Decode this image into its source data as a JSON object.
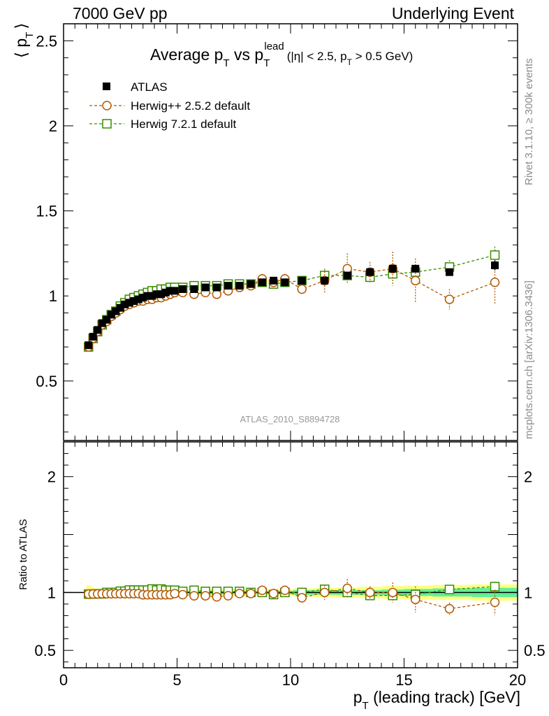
{
  "header": {
    "left": "7000 GeV pp",
    "right": "Underlying Event"
  },
  "side_labels": {
    "rivet": "Rivet 3.1.10, ≥ 300k events",
    "mcplots": "mcplots.cern.ch [arXiv:1306.3436]"
  },
  "chart_data": {
    "type": "scatter",
    "title_parts": {
      "lead": "Average p",
      "sub_t": "T",
      "mid": " vs p",
      "sub_t2": "T",
      "sup": "lead",
      "cut1": "(|η| < 2.5, p",
      "cut_sub": "T",
      "cut2": " > 0.5 GeV)"
    },
    "analysis_label": "ATLAS_2010_S8894728",
    "ylabel_main": "⟨ p",
    "ylabel_main_sub": "T",
    "ylabel_main_close": "⟩",
    "ylabel_ratio": "Ratio to ATLAS",
    "xlabel": "p",
    "xlabel_sub": "T",
    "xlabel_rest": " (leading track) [GeV]",
    "xlim": [
      0,
      20
    ],
    "ylim_main": [
      0.15,
      2.6
    ],
    "ylim_ratio": [
      0.35,
      2.3
    ],
    "xticks": [
      "0",
      "5",
      "10",
      "15",
      "20"
    ],
    "yticks_main": [
      "0.5",
      "1",
      "1.5",
      "2",
      "2.5"
    ],
    "yticks_ratio": [
      "0.5",
      "1",
      "2"
    ],
    "legend_position": "top-left",
    "colors": {
      "atlas": "#000000",
      "herwigpp": "#b35900",
      "herwig7": "#3a8c00",
      "band_outer": "#ffff80",
      "band_inner": "#66ee99"
    },
    "x": [
      1.1,
      1.3,
      1.5,
      1.7,
      1.9,
      2.1,
      2.3,
      2.5,
      2.7,
      2.9,
      3.1,
      3.3,
      3.5,
      3.7,
      3.9,
      4.1,
      4.3,
      4.5,
      4.7,
      4.9,
      5.25,
      5.75,
      6.25,
      6.75,
      7.25,
      7.75,
      8.25,
      8.75,
      9.25,
      9.75,
      10.5,
      11.5,
      12.5,
      13.5,
      14.5,
      15.5,
      17.0,
      19.0
    ],
    "series": [
      {
        "name": "ATLAS",
        "marker": "filled-square",
        "values": [
          0.71,
          0.76,
          0.8,
          0.84,
          0.86,
          0.89,
          0.91,
          0.93,
          0.95,
          0.96,
          0.97,
          0.98,
          0.99,
          1.0,
          1.0,
          1.01,
          1.01,
          1.02,
          1.03,
          1.03,
          1.04,
          1.04,
          1.05,
          1.05,
          1.06,
          1.06,
          1.07,
          1.08,
          1.09,
          1.08,
          1.09,
          1.09,
          1.12,
          1.14,
          1.16,
          1.16,
          1.14,
          1.18
        ],
        "errors": [
          0.01,
          0.01,
          0.01,
          0.01,
          0.01,
          0.01,
          0.01,
          0.01,
          0.01,
          0.01,
          0.01,
          0.01,
          0.01,
          0.01,
          0.01,
          0.01,
          0.01,
          0.01,
          0.01,
          0.01,
          0.01,
          0.01,
          0.01,
          0.01,
          0.01,
          0.01,
          0.01,
          0.01,
          0.01,
          0.01,
          0.01,
          0.01,
          0.02,
          0.02,
          0.02,
          0.02,
          0.02,
          0.03
        ]
      },
      {
        "name": "Herwig++ 2.5.2 default",
        "marker": "open-circle",
        "values": [
          0.7,
          0.75,
          0.79,
          0.83,
          0.85,
          0.88,
          0.9,
          0.92,
          0.94,
          0.95,
          0.96,
          0.97,
          0.97,
          0.98,
          0.98,
          0.99,
          0.99,
          1.0,
          1.01,
          1.02,
          1.02,
          1.01,
          1.02,
          1.01,
          1.03,
          1.05,
          1.06,
          1.1,
          1.08,
          1.1,
          1.04,
          1.09,
          1.16,
          1.14,
          1.16,
          1.09,
          0.98,
          1.08
        ],
        "errors": [
          0.01,
          0.01,
          0.01,
          0.01,
          0.01,
          0.01,
          0.01,
          0.01,
          0.01,
          0.01,
          0.01,
          0.01,
          0.01,
          0.01,
          0.01,
          0.01,
          0.01,
          0.01,
          0.01,
          0.01,
          0.01,
          0.01,
          0.01,
          0.01,
          0.01,
          0.02,
          0.02,
          0.03,
          0.03,
          0.03,
          0.03,
          0.07,
          0.09,
          0.06,
          0.1,
          0.13,
          0.06,
          0.13
        ]
      },
      {
        "name": "Herwig 7.2.1 default",
        "marker": "open-square",
        "values": [
          0.7,
          0.75,
          0.79,
          0.83,
          0.86,
          0.89,
          0.91,
          0.94,
          0.96,
          0.98,
          0.99,
          1.0,
          1.01,
          1.02,
          1.03,
          1.03,
          1.04,
          1.04,
          1.05,
          1.05,
          1.05,
          1.06,
          1.06,
          1.06,
          1.07,
          1.07,
          1.07,
          1.08,
          1.07,
          1.08,
          1.09,
          1.12,
          1.12,
          1.11,
          1.13,
          1.14,
          1.17,
          1.24
        ],
        "errors": [
          0.01,
          0.01,
          0.01,
          0.01,
          0.01,
          0.01,
          0.01,
          0.01,
          0.01,
          0.01,
          0.01,
          0.01,
          0.01,
          0.01,
          0.01,
          0.01,
          0.01,
          0.01,
          0.01,
          0.01,
          0.01,
          0.01,
          0.01,
          0.01,
          0.01,
          0.01,
          0.01,
          0.02,
          0.02,
          0.02,
          0.02,
          0.03,
          0.03,
          0.03,
          0.03,
          0.04,
          0.04,
          0.05
        ]
      }
    ],
    "ratio_band": {
      "inner": [
        0.02,
        0.015,
        0.015,
        0.015,
        0.015,
        0.015,
        0.015,
        0.015,
        0.015,
        0.015,
        0.015,
        0.015,
        0.015,
        0.015,
        0.015,
        0.015,
        0.015,
        0.015,
        0.015,
        0.015,
        0.015,
        0.015,
        0.015,
        0.015,
        0.015,
        0.015,
        0.015,
        0.015,
        0.015,
        0.015,
        0.02,
        0.02,
        0.02,
        0.02,
        0.025,
        0.03,
        0.035,
        0.04
      ],
      "outer": [
        0.06,
        0.04,
        0.035,
        0.03,
        0.03,
        0.03,
        0.03,
        0.03,
        0.03,
        0.03,
        0.03,
        0.03,
        0.03,
        0.03,
        0.03,
        0.03,
        0.03,
        0.03,
        0.03,
        0.03,
        0.03,
        0.03,
        0.03,
        0.03,
        0.03,
        0.03,
        0.03,
        0.03,
        0.03,
        0.03,
        0.035,
        0.04,
        0.045,
        0.05,
        0.055,
        0.06,
        0.065,
        0.07
      ]
    }
  }
}
